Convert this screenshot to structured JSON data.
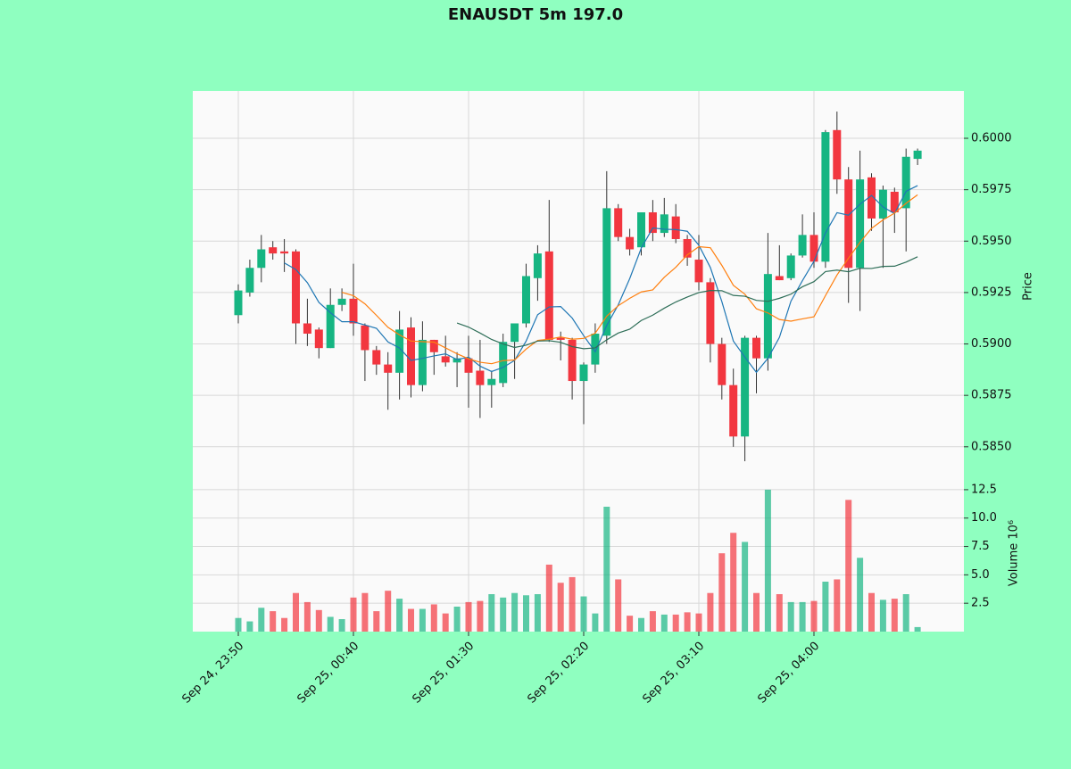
{
  "chart_data": {
    "type": "candlestick",
    "title": "ENAUSDT 5m 197.0",
    "ylabel": "Price",
    "y2label": "Volume  10⁶",
    "up_color": "#16b582",
    "down_color": "#f2363f",
    "grid": true,
    "xticks": [
      {
        "value": 0,
        "label": "Sep 24, 23:50"
      },
      {
        "value": 10,
        "label": "Sep 25, 00:40"
      },
      {
        "value": 20,
        "label": "Sep 25, 01:30"
      },
      {
        "value": 30,
        "label": "Sep 25, 02:20"
      },
      {
        "value": 40,
        "label": "Sep 25, 03:10"
      },
      {
        "value": 50,
        "label": "Sep 25, 04:00"
      }
    ],
    "ylim": [
      0.5833,
      0.6023
    ],
    "yticks": [
      {
        "value": 0.585,
        "label": "0.5850"
      },
      {
        "value": 0.5875,
        "label": "0.5875"
      },
      {
        "value": 0.59,
        "label": "0.5900"
      },
      {
        "value": 0.5925,
        "label": "0.5925"
      },
      {
        "value": 0.595,
        "label": "0.5950"
      },
      {
        "value": 0.5975,
        "label": "0.5975"
      },
      {
        "value": 0.6,
        "label": "0.6000"
      }
    ],
    "y2lim": [
      0,
      13.2
    ],
    "y2ticks": [
      2.5,
      {
        "value": 5,
        "label": "5.0"
      },
      7.5,
      {
        "value": 10,
        "label": "10.0"
      },
      12.5
    ],
    "open": [
      0.5914,
      0.5925,
      0.5937,
      0.5947,
      0.5945,
      0.5945,
      0.591,
      0.5907,
      0.5898,
      0.5919,
      0.5922,
      0.5909,
      0.5897,
      0.589,
      0.5886,
      0.5908,
      0.588,
      0.5902,
      0.5894,
      0.5891,
      0.5893,
      0.5887,
      0.588,
      0.5881,
      0.5901,
      0.591,
      0.5932,
      0.5945,
      0.5903,
      0.5902,
      0.5882,
      0.589,
      0.5904,
      0.5966,
      0.5952,
      0.5947,
      0.5964,
      0.5954,
      0.5962,
      0.5951,
      0.5941,
      0.593,
      0.59,
      0.588,
      0.5855,
      0.5903,
      0.5893,
      0.5933,
      0.5932,
      0.5943,
      0.5953,
      0.594,
      0.6004,
      0.598,
      0.5937,
      0.5981,
      0.5961,
      0.5974,
      0.5966,
      0.599
    ],
    "high": [
      0.5929,
      0.5941,
      0.5953,
      0.595,
      0.5951,
      0.5946,
      0.5922,
      0.5908,
      0.5927,
      0.5927,
      0.5939,
      0.591,
      0.5899,
      0.5896,
      0.5916,
      0.5913,
      0.5911,
      0.5902,
      0.5904,
      0.5896,
      0.5904,
      0.5902,
      0.5887,
      0.5905,
      0.591,
      0.5939,
      0.5948,
      0.597,
      0.5906,
      0.5903,
      0.5891,
      0.591,
      0.5984,
      0.5968,
      0.5956,
      0.5964,
      0.597,
      0.5971,
      0.5968,
      0.5953,
      0.5953,
      0.5932,
      0.5903,
      0.5888,
      0.5904,
      0.5904,
      0.5954,
      0.5948,
      0.5944,
      0.5963,
      0.5964,
      0.6004,
      0.6013,
      0.5986,
      0.5994,
      0.5983,
      0.5977,
      0.5976,
      0.5995,
      0.5995
    ],
    "low": [
      0.591,
      0.5923,
      0.593,
      0.5941,
      0.5935,
      0.59,
      0.5899,
      0.5893,
      0.5898,
      0.5916,
      0.5904,
      0.5882,
      0.5885,
      0.5868,
      0.5873,
      0.5874,
      0.5877,
      0.5885,
      0.5889,
      0.5879,
      0.5869,
      0.5864,
      0.5869,
      0.5879,
      0.5883,
      0.5908,
      0.5921,
      0.5901,
      0.5892,
      0.5873,
      0.5861,
      0.5886,
      0.59,
      0.595,
      0.5943,
      0.5943,
      0.595,
      0.5952,
      0.5949,
      0.5938,
      0.5926,
      0.5891,
      0.5873,
      0.585,
      0.5843,
      0.5876,
      0.5887,
      0.5931,
      0.5931,
      0.5942,
      0.5937,
      0.5937,
      0.5973,
      0.592,
      0.5916,
      0.5955,
      0.5937,
      0.5954,
      0.5945,
      0.5987
    ],
    "close": [
      0.5926,
      0.5937,
      0.5946,
      0.5944,
      0.5944,
      0.591,
      0.5905,
      0.5898,
      0.5919,
      0.5922,
      0.591,
      0.5897,
      0.589,
      0.5886,
      0.5907,
      0.588,
      0.5902,
      0.5896,
      0.5891,
      0.5893,
      0.5886,
      0.588,
      0.5883,
      0.5901,
      0.591,
      0.5933,
      0.5944,
      0.5902,
      0.5902,
      0.5882,
      0.589,
      0.5905,
      0.5966,
      0.5952,
      0.5946,
      0.5964,
      0.5954,
      0.5963,
      0.5951,
      0.5942,
      0.593,
      0.59,
      0.588,
      0.5855,
      0.5903,
      0.5893,
      0.5934,
      0.5931,
      0.5943,
      0.5953,
      0.594,
      0.6003,
      0.598,
      0.5937,
      0.598,
      0.5961,
      0.5975,
      0.5964,
      0.5991,
      0.5994
    ],
    "volume": [
      1.2,
      0.9,
      2.1,
      1.8,
      1.2,
      3.4,
      2.6,
      1.9,
      1.3,
      1.1,
      3.0,
      3.4,
      1.8,
      3.6,
      2.9,
      2.0,
      2.0,
      2.4,
      1.6,
      2.2,
      2.6,
      2.7,
      3.3,
      3.0,
      3.4,
      3.2,
      3.3,
      5.9,
      4.3,
      4.8,
      3.1,
      1.6,
      11.0,
      4.6,
      1.4,
      1.2,
      1.8,
      1.5,
      1.5,
      1.7,
      1.6,
      3.4,
      6.9,
      8.7,
      7.9,
      3.4,
      12.5,
      3.3,
      2.6,
      2.6,
      2.7,
      4.4,
      4.6,
      11.6,
      6.5,
      3.4,
      2.8,
      2.9,
      3.3,
      0.4
    ],
    "ma_lines": [
      {
        "color": "#1f77b4",
        "values": [
          null,
          null,
          null,
          null,
          0.59394,
          0.59362,
          0.59298,
          0.59202,
          0.59152,
          0.59108,
          0.59108,
          0.59092,
          0.59076,
          0.5901,
          0.5898,
          0.5892,
          0.5893,
          0.58942,
          0.58952,
          0.58924,
          0.58936,
          0.58892,
          0.58866,
          0.58886,
          0.5892,
          0.59014,
          0.59142,
          0.5918,
          0.59182,
          0.59126,
          0.5904,
          0.58962,
          0.5909,
          0.5919,
          0.59318,
          0.59466,
          0.59564,
          0.59558,
          0.59556,
          0.59548,
          0.5948,
          0.59372,
          0.59206,
          0.59014,
          0.58936,
          0.58862,
          0.5893,
          0.59032,
          0.59208,
          0.59308,
          0.59402,
          0.5954,
          0.59638,
          0.59626,
          0.5968,
          0.59722,
          0.59666,
          0.59634,
          0.59742,
          0.5977
        ]
      },
      {
        "color": "#ff7f0e",
        "values": [
          null,
          null,
          null,
          null,
          null,
          null,
          null,
          null,
          null,
          0.59251,
          0.59235,
          0.59195,
          0.59139,
          0.59081,
          0.59044,
          0.59014,
          0.59011,
          0.59009,
          0.58981,
          0.58952,
          0.58928,
          0.58911,
          0.58904,
          0.58919,
          0.58922,
          0.58975,
          0.59017,
          0.59023,
          0.59034,
          0.59023,
          0.59027,
          0.59052,
          0.59135,
          0.59186,
          0.59222,
          0.59253,
          0.59263,
          0.59324,
          0.59373,
          0.59433,
          0.59473,
          0.59468,
          0.59382,
          0.59285,
          0.59242,
          0.59171,
          0.59151,
          0.59119,
          0.59111,
          0.59122,
          0.59132,
          0.59235,
          0.59335,
          0.59417,
          0.59494,
          0.59562,
          0.59603,
          0.59636,
          0.59684,
          0.59725
        ]
      },
      {
        "color": "#2e6e58",
        "values": [
          null,
          null,
          null,
          null,
          null,
          null,
          null,
          null,
          null,
          null,
          null,
          null,
          null,
          null,
          null,
          null,
          null,
          null,
          null,
          0.59102,
          0.59082,
          0.59053,
          0.59022,
          0.59,
          0.58983,
          0.58994,
          0.59014,
          0.59016,
          0.59008,
          0.58987,
          0.58977,
          0.58981,
          0.5902,
          0.59053,
          0.59072,
          0.59114,
          0.5914,
          0.59174,
          0.59204,
          0.59228,
          0.5925,
          0.5926,
          0.59259,
          0.59236,
          0.59232,
          0.59212,
          0.59207,
          0.59222,
          0.59242,
          0.59278,
          0.59303,
          0.59352,
          0.59359,
          0.59351,
          0.59368,
          0.59367,
          0.59377,
          0.59378,
          0.59398,
          0.59424
        ]
      }
    ]
  }
}
